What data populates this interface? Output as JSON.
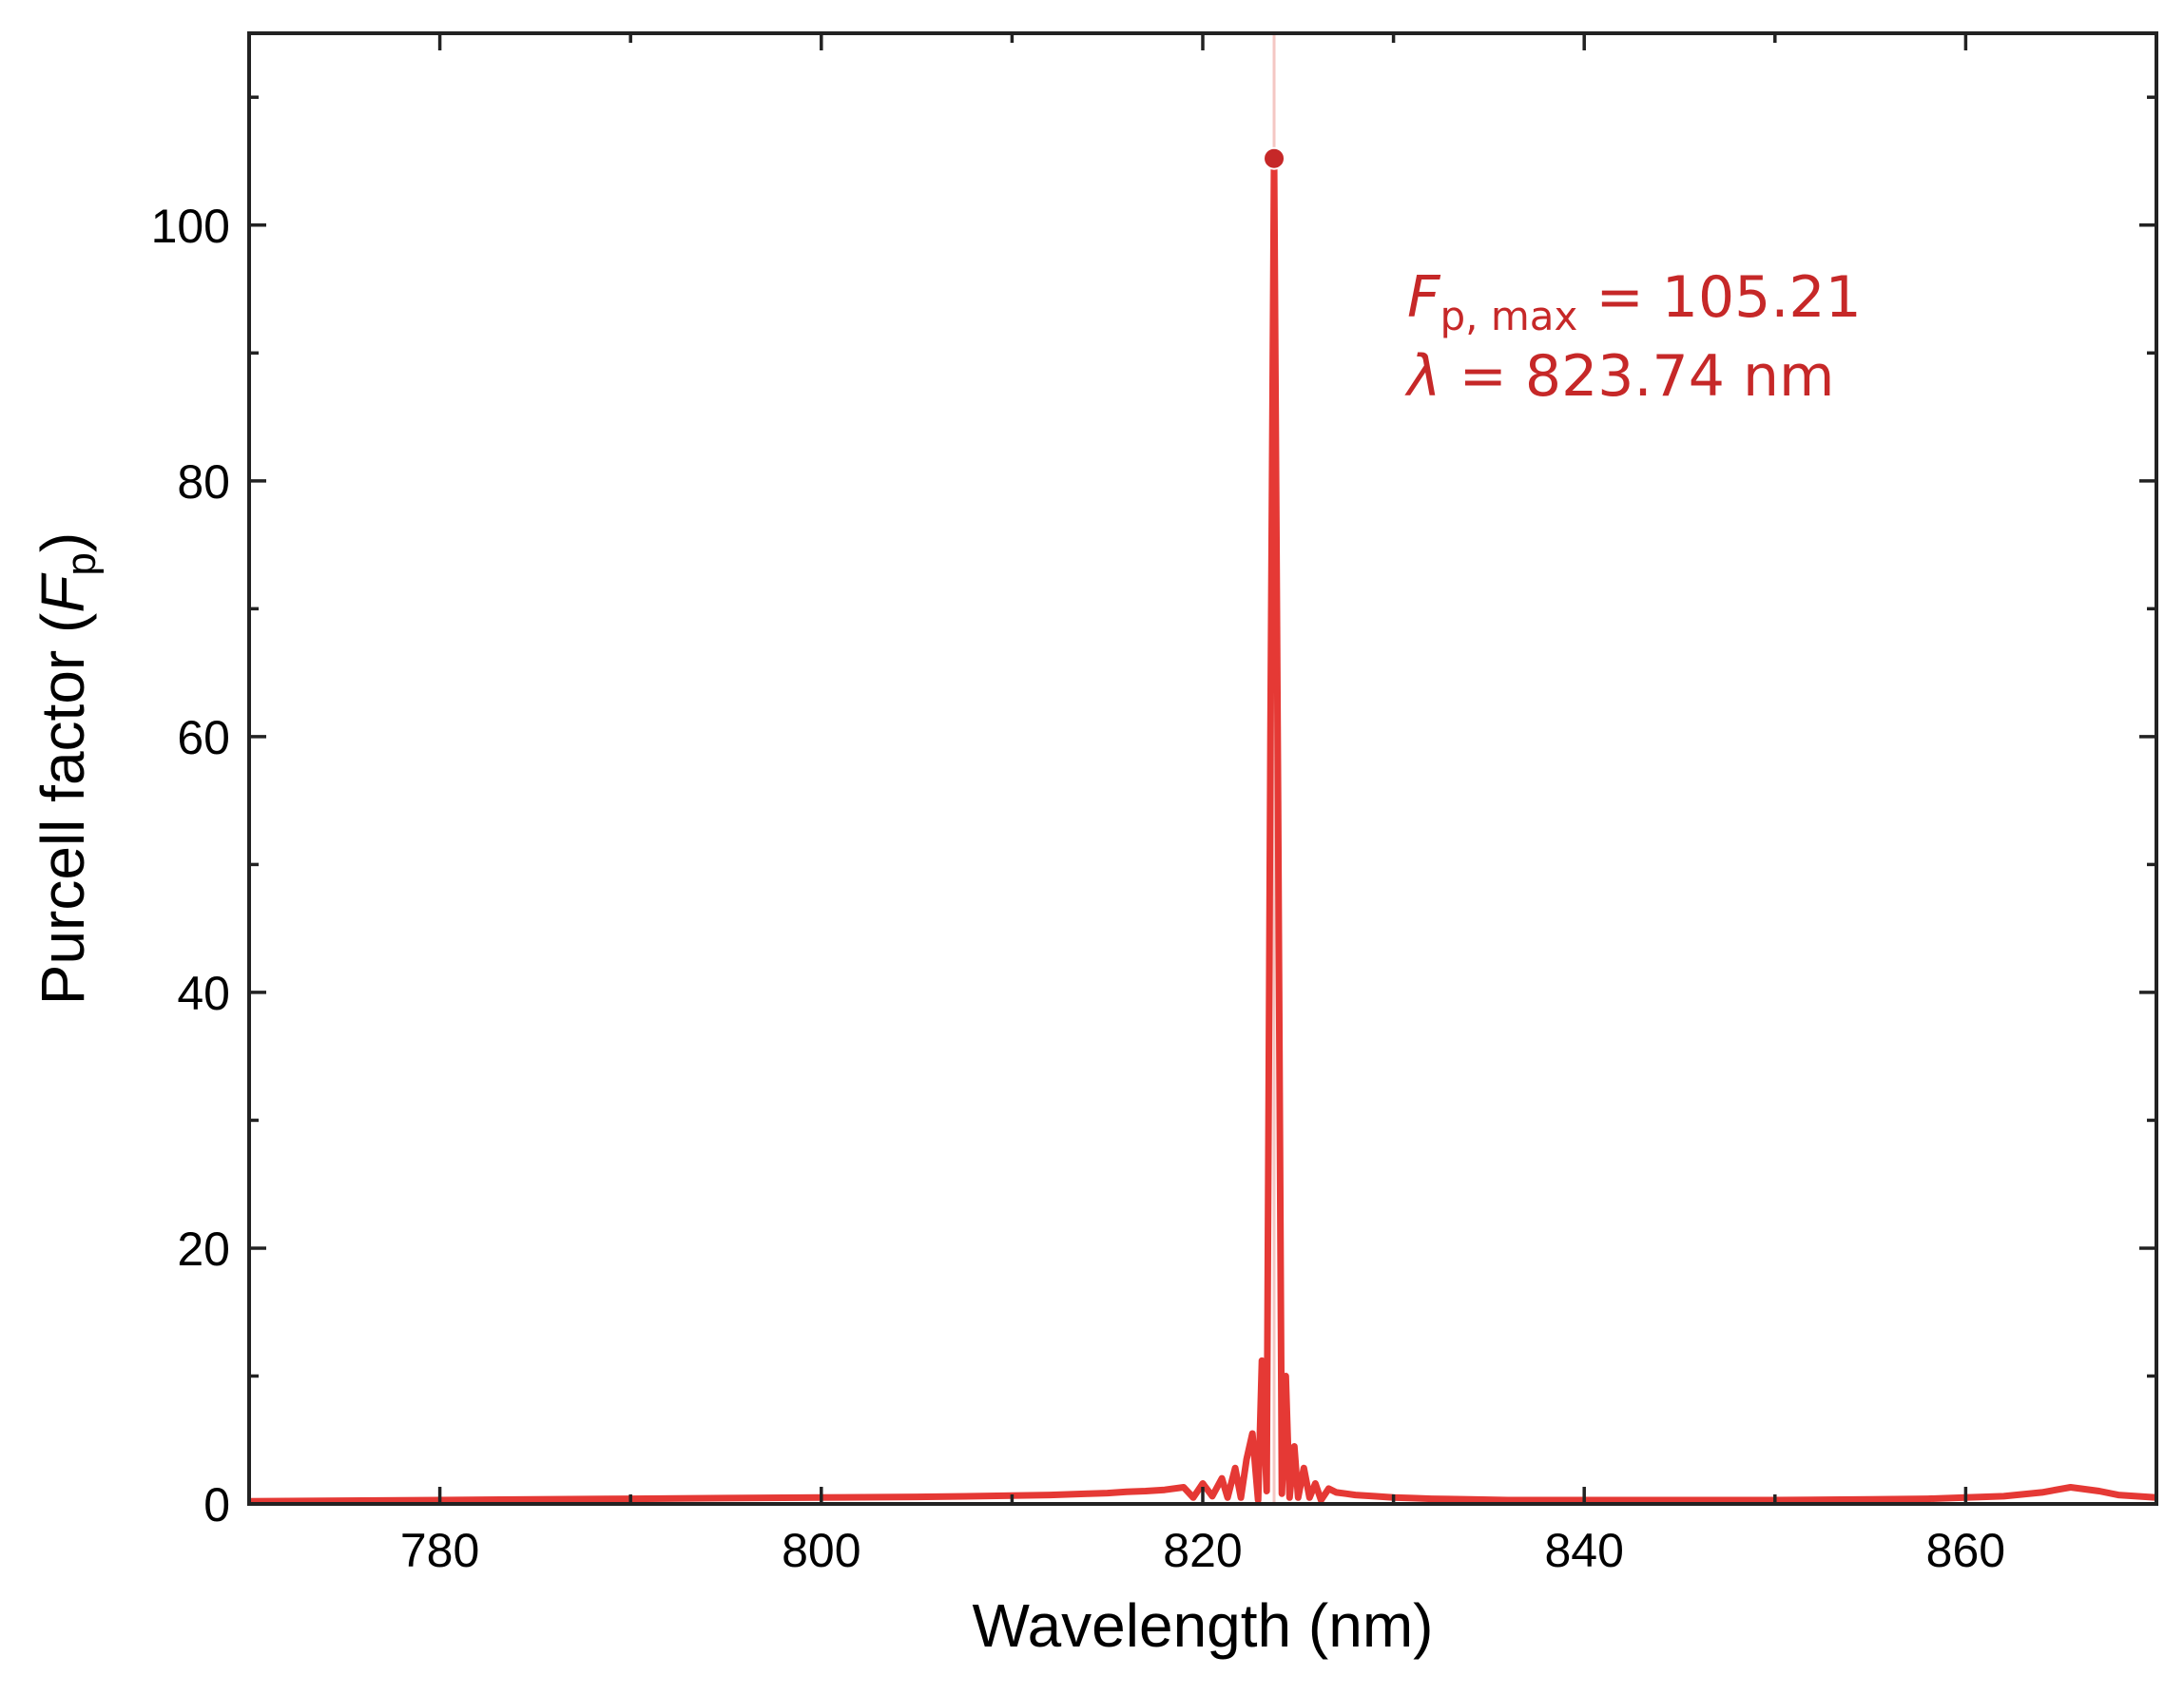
{
  "chart_data": {
    "type": "line",
    "xlabel": "Wavelength (nm)",
    "ylabel": {
      "prefix": "Purcell factor (",
      "symbol": "F",
      "subscript": "p",
      "suffix": ")"
    },
    "xlim": [
      770,
      870
    ],
    "ylim": [
      0,
      115
    ],
    "xticks": [
      780,
      800,
      820,
      840,
      860
    ],
    "xtick_labels": [
      "780",
      "800",
      "820",
      "840",
      "860"
    ],
    "xminor_step": 10,
    "yticks": [
      0,
      20,
      40,
      60,
      80,
      100
    ],
    "ytick_labels": [
      "0",
      "20",
      "40",
      "60",
      "80",
      "100"
    ],
    "yminor_step": 10,
    "grid": false,
    "line_color": "#e53935",
    "marker_color": "#c62828",
    "vline_color": "#f4c7c3",
    "annotation_color": "#c62828",
    "series": [
      {
        "x": [
          770,
          775,
          780,
          785,
          790,
          795,
          800,
          805,
          808,
          810,
          812,
          814,
          815,
          816,
          817,
          818,
          819,
          819.5,
          820,
          820.5,
          821,
          821.3,
          821.7,
          822.0,
          822.3,
          822.6,
          822.9,
          823.1,
          823.35,
          823.55,
          823.74,
          823.95,
          824.15,
          824.35,
          824.55,
          824.8,
          825.0,
          825.3,
          825.6,
          825.9,
          826.2,
          826.6,
          827.0,
          827.5,
          828,
          829,
          830,
          831,
          832,
          834,
          836,
          838,
          840,
          845,
          850,
          855,
          858,
          860,
          862,
          864,
          865.5,
          867,
          868,
          870
        ],
        "y": [
          0.2,
          0.25,
          0.3,
          0.35,
          0.4,
          0.45,
          0.5,
          0.55,
          0.6,
          0.65,
          0.7,
          0.8,
          0.85,
          0.95,
          1.0,
          1.1,
          1.3,
          0.5,
          1.6,
          0.6,
          2.0,
          0.5,
          2.8,
          0.5,
          3.5,
          5.5,
          0.3,
          11.2,
          1.0,
          60,
          105.21,
          55,
          0.8,
          10.0,
          0.5,
          4.5,
          0.5,
          2.8,
          0.5,
          1.6,
          0.3,
          1.2,
          0.9,
          0.8,
          0.7,
          0.6,
          0.5,
          0.45,
          0.4,
          0.35,
          0.3,
          0.3,
          0.3,
          0.3,
          0.3,
          0.35,
          0.4,
          0.5,
          0.6,
          0.9,
          1.3,
          1.0,
          0.7,
          0.5
        ]
      }
    ],
    "peak": {
      "x": 823.74,
      "y": 105.21
    },
    "annotation": {
      "line1": {
        "symbol": "F",
        "subscript": "p, max",
        "text": " = 105.21"
      },
      "line2": {
        "symbol": "λ",
        "text": " = 823.74 nm"
      }
    }
  }
}
